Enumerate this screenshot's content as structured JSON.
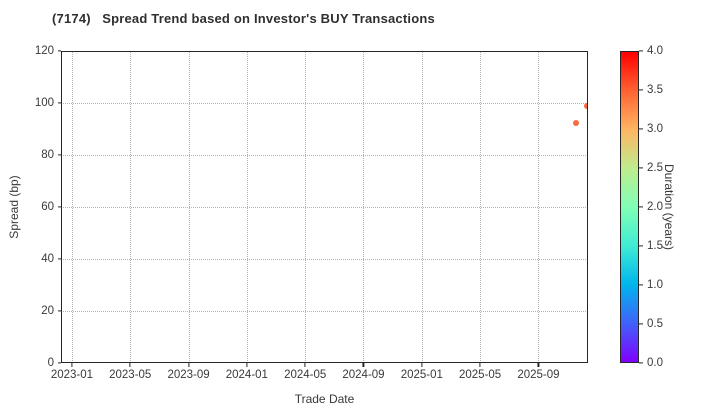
{
  "chart_data": {
    "type": "scatter",
    "title": "(7174)   Spread Trend based on Investor's BUY Transactions",
    "xlabel": "Trade Date",
    "ylabel": "Spread (bp)",
    "grid": "dotted",
    "legend": "none",
    "x_tick_labels": [
      "2023-01",
      "2023-05",
      "2023-09",
      "2024-01",
      "2024-05",
      "2024-09",
      "2025-01",
      "2025-05",
      "2025-09"
    ],
    "x_tick_month_offsets": [
      0,
      4,
      8,
      12,
      16,
      20,
      24,
      28,
      32
    ],
    "x_range_months": [
      -0.75,
      35.4
    ],
    "y_ticks": [
      0,
      20,
      40,
      60,
      80,
      100,
      120
    ],
    "ylim": [
      0,
      120
    ],
    "points": [
      {
        "date": "2025-11",
        "month_offset": 34.6,
        "spread": 92.5,
        "duration": 3.4,
        "color": "#fb6a3d"
      },
      {
        "date": "2025-12",
        "month_offset": 35.35,
        "spread": 99.0,
        "duration": 3.4,
        "color": "#fb6a3d"
      }
    ],
    "colorbar": {
      "label": "Duration (years)",
      "range": [
        0.0,
        4.0
      ],
      "ticks": [
        "0.0",
        "0.5",
        "1.0",
        "1.5",
        "2.0",
        "2.5",
        "3.0",
        "3.5",
        "4.0"
      ],
      "colormap": "rainbow",
      "gradient_stops": [
        "#8000ff",
        "#4062fa",
        "#00b5ec",
        "#40ecd4",
        "#80ffb5",
        "#bfec8e",
        "#ffb562",
        "#ff6232",
        "#ff0000"
      ]
    }
  },
  "colors": {
    "spine": "#262626",
    "grid": "#b3b3b3",
    "tick_text": "#3a3a3a",
    "title_text": "#2f2f2f",
    "background": "#ffffff"
  }
}
